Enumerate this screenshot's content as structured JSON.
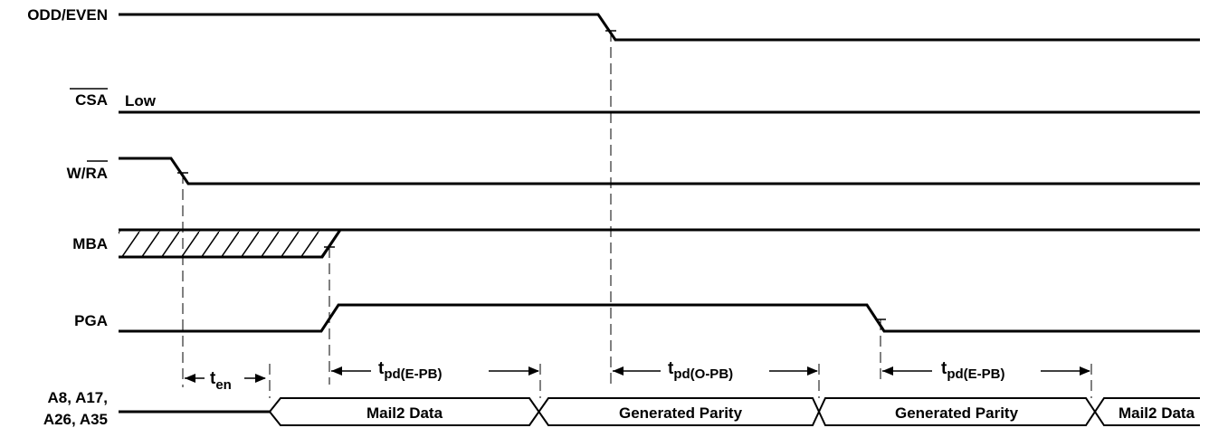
{
  "signals": {
    "odd_even": "ODD/EVEN",
    "csa": "CSA",
    "csa_state": "Low",
    "wra_w": "W/",
    "wra_ra": "RA",
    "mba": "MBA",
    "pga": "PGA",
    "bus_line1": "A8, A17,",
    "bus_line2": "A26, A35"
  },
  "timing": {
    "ten_base": "t",
    "ten_sub": "en",
    "tpd_base": "t",
    "tpd_e_sub": "pd(E-PB)",
    "tpd_o_sub": "pd(O-PB)"
  },
  "bus_segments": {
    "seg1": "Mail2 Data",
    "seg2": "Generated Parity",
    "seg3": "Generated Parity",
    "seg4": "Mail2 Data"
  }
}
